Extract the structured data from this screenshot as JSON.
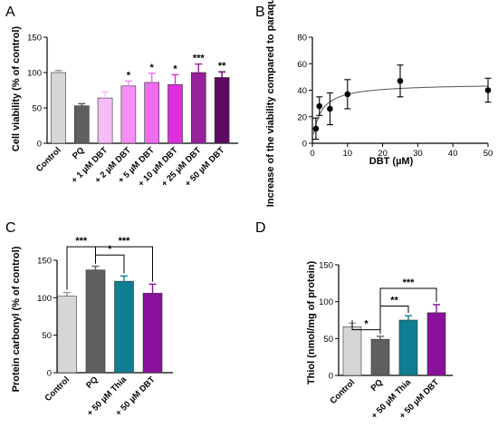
{
  "chart_data": [
    {
      "panel": "A",
      "type": "bar",
      "ylabel": "Cell viability (% of control)",
      "xlabel": "",
      "ylim": [
        0,
        150
      ],
      "yticks": [
        "0",
        "50",
        "100",
        "150"
      ],
      "categories": [
        "Control",
        "PQ",
        "+ 1 µM DBT",
        "+ 2 µM DBT",
        "+ 5 µM DBT",
        "+ 10 µM DBT",
        "+ 25 µM DBT",
        "+ 50 µM DBT"
      ],
      "values": [
        100,
        53,
        64,
        81,
        86,
        83,
        100,
        93
      ],
      "errors": [
        3,
        3,
        9,
        7,
        13,
        14,
        12,
        8
      ],
      "colors": [
        "#d6d6d6",
        "#5f5f5f",
        "#f5bdf5",
        "#f58ff5",
        "#f06df0",
        "#de2ede",
        "#97209b",
        "#5e0a62"
      ],
      "significance": [
        "",
        "",
        "",
        "*",
        "*",
        "*",
        "***",
        "**"
      ]
    },
    {
      "panel": "B",
      "type": "scatter",
      "xlabel": "DBT (µM)",
      "ylabel": "Increase of the viability compared to paraquat (%)",
      "xlim": [
        0,
        50
      ],
      "ylim": [
        0,
        80
      ],
      "xticks": [
        "0",
        "10",
        "20",
        "30",
        "40",
        "50"
      ],
      "yticks": [
        "0",
        "20",
        "40",
        "60",
        "80"
      ],
      "points": [
        {
          "x": 1,
          "y": 11,
          "err": 8
        },
        {
          "x": 2,
          "y": 28,
          "err": 7
        },
        {
          "x": 5,
          "y": 26,
          "err": 12
        },
        {
          "x": 10,
          "y": 37,
          "err": 11
        },
        {
          "x": 25,
          "y": 47,
          "err": 12
        },
        {
          "x": 50,
          "y": 40,
          "err": 9
        }
      ],
      "fit": {
        "top": 45,
        "half": 2.2
      }
    },
    {
      "panel": "C",
      "type": "bar",
      "ylabel": "Protein carbonyl (% of control)",
      "xlabel": "",
      "ylim": [
        0,
        150
      ],
      "yticks": [
        "0",
        "50",
        "100",
        "150"
      ],
      "categories": [
        "Control",
        "PQ",
        "+ 50 µM Thia",
        "+ 50 µM DBT"
      ],
      "values": [
        102,
        137,
        122,
        106
      ],
      "errors": [
        5,
        5,
        7,
        12
      ],
      "colors": [
        "#d6d6d6",
        "#5f5f5f",
        "#0f7e92",
        "#8a0f9c"
      ],
      "brackets": [
        {
          "from": 0,
          "to": 1,
          "level": 168,
          "label": "***"
        },
        {
          "from": 1,
          "to": 2,
          "level": 157,
          "label": "*"
        },
        {
          "from": 1,
          "to": 3,
          "level": 168,
          "label": "***"
        }
      ]
    },
    {
      "panel": "D",
      "type": "bar",
      "ylabel": "Thiol (nmol/mg of protein)",
      "xlabel": "",
      "ylim": [
        0,
        150
      ],
      "yticks": [
        "0",
        "50",
        "100",
        "150"
      ],
      "categories": [
        "Control",
        "PQ",
        "+ 50 µM Thia",
        "+ 50 µM DBT"
      ],
      "values": [
        66,
        49,
        75,
        85
      ],
      "errors": [
        5,
        4,
        6,
        11
      ],
      "colors": [
        "#d6d6d6",
        "#5f5f5f",
        "#0f7e92",
        "#8a0f9c"
      ],
      "brackets": [
        {
          "from": 0,
          "to": 1,
          "level": 62,
          "label": "*"
        },
        {
          "from": 1,
          "to": 2,
          "level": 94,
          "label": "**"
        },
        {
          "from": 1,
          "to": 3,
          "level": 118,
          "label": "***"
        }
      ]
    }
  ]
}
